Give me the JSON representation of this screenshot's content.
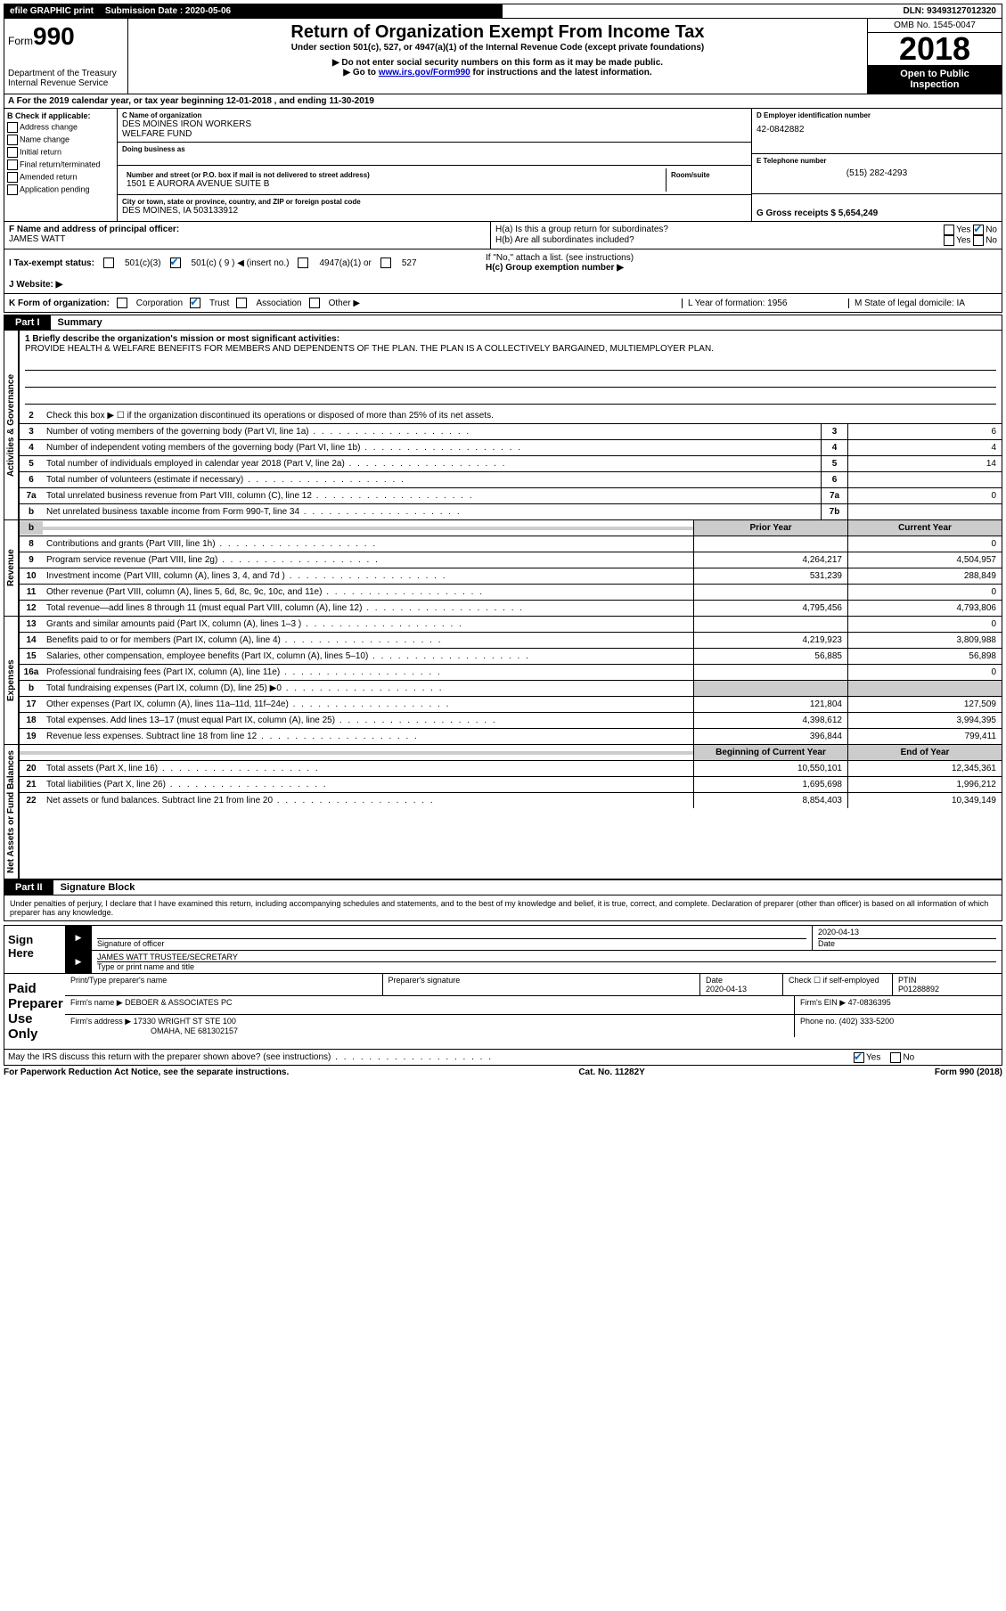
{
  "topbar": {
    "efile": "efile GRAPHIC print",
    "submission_label": "Submission Date : 2020-05-06",
    "dln": "DLN: 93493127012320"
  },
  "header": {
    "form_prefix": "Form",
    "form_number": "990",
    "dept": "Department of the Treasury",
    "irs": "Internal Revenue Service",
    "title": "Return of Organization Exempt From Income Tax",
    "sub1": "Under section 501(c), 527, or 4947(a)(1) of the Internal Revenue Code (except private foundations)",
    "sub2": "▶ Do not enter social security numbers on this form as it may be made public.",
    "sub3_pre": "▶ Go to ",
    "sub3_link": "www.irs.gov/Form990",
    "sub3_post": " for instructions and the latest information.",
    "omb": "OMB No. 1545-0047",
    "year": "2018",
    "open1": "Open to Public",
    "open2": "Inspection"
  },
  "rowA": "A For the 2019 calendar year, or tax year beginning 12-01-2018    , and ending 11-30-2019",
  "boxB": {
    "label": "B Check if applicable:",
    "items": [
      "Address change",
      "Name change",
      "Initial return",
      "Final return/terminated",
      "Amended return",
      "Application pending"
    ]
  },
  "boxC": {
    "name_label": "C Name of organization",
    "name1": "DES MOINES IRON WORKERS",
    "name2": "WELFARE FUND",
    "dba_label": "Doing business as",
    "addr_label": "Number and street (or P.O. box if mail is not delivered to street address)",
    "addr": "1501 E AURORA AVENUE SUITE B",
    "room_label": "Room/suite",
    "city_label": "City or town, state or province, country, and ZIP or foreign postal code",
    "city": "DES MOINES, IA  503133912"
  },
  "boxD": {
    "label": "D Employer identification number",
    "value": "42-0842882"
  },
  "boxE": {
    "label": "E Telephone number",
    "value": "(515) 282-4293"
  },
  "boxG": {
    "label": "G Gross receipts $ 5,654,249"
  },
  "boxF": {
    "label": "F Name and address of principal officer:",
    "value": "JAMES WATT"
  },
  "boxH": {
    "ha": "H(a)  Is this a group return for subordinates?",
    "hb": "H(b)  Are all subordinates included?",
    "hb_note": "If \"No,\" attach a list. (see instructions)",
    "hc": "H(c)  Group exemption number ▶",
    "yes": "Yes",
    "no": "No"
  },
  "rowI": {
    "label": "I   Tax-exempt status:",
    "opt1": "501(c)(3)",
    "opt2": "501(c) ( 9 ) ◀ (insert no.)",
    "opt3": "4947(a)(1) or",
    "opt4": "527"
  },
  "rowJ": {
    "label": "J   Website: ▶"
  },
  "rowK": {
    "label": "K Form of organization:",
    "opts": [
      "Corporation",
      "Trust",
      "Association",
      "Other ▶"
    ],
    "L": "L Year of formation: 1956",
    "M": "M State of legal domicile: IA"
  },
  "part1": {
    "tab": "Part I",
    "title": "Summary",
    "line1_label": "1  Briefly describe the organization's mission or most significant activities:",
    "line1_text": "PROVIDE HEALTH & WELFARE BENEFITS FOR MEMBERS AND DEPENDENTS OF THE PLAN. THE PLAN IS A COLLECTIVELY BARGAINED, MULTIEMPLOYER PLAN.",
    "line2": "Check this box ▶ ☐  if the organization discontinued its operations or disposed of more than 25% of its net assets.",
    "gov_label": "Activities & Governance",
    "rev_label": "Revenue",
    "exp_label": "Expenses",
    "net_label": "Net Assets or Fund Balances",
    "col_py": "Prior Year",
    "col_cy": "Current Year",
    "col_boy": "Beginning of Current Year",
    "col_eoy": "End of Year",
    "lines_gov": [
      {
        "n": "3",
        "d": "Number of voting members of the governing body (Part VI, line 1a)",
        "box": "3",
        "v": "6"
      },
      {
        "n": "4",
        "d": "Number of independent voting members of the governing body (Part VI, line 1b)",
        "box": "4",
        "v": "4"
      },
      {
        "n": "5",
        "d": "Total number of individuals employed in calendar year 2018 (Part V, line 2a)",
        "box": "5",
        "v": "14"
      },
      {
        "n": "6",
        "d": "Total number of volunteers (estimate if necessary)",
        "box": "6",
        "v": ""
      },
      {
        "n": "7a",
        "d": "Total unrelated business revenue from Part VIII, column (C), line 12",
        "box": "7a",
        "v": "0"
      },
      {
        "n": "b",
        "d": "Net unrelated business taxable income from Form 990-T, line 34",
        "box": "7b",
        "v": ""
      }
    ],
    "lines_rev": [
      {
        "n": "8",
        "d": "Contributions and grants (Part VIII, line 1h)",
        "py": "",
        "cy": "0"
      },
      {
        "n": "9",
        "d": "Program service revenue (Part VIII, line 2g)",
        "py": "4,264,217",
        "cy": "4,504,957"
      },
      {
        "n": "10",
        "d": "Investment income (Part VIII, column (A), lines 3, 4, and 7d )",
        "py": "531,239",
        "cy": "288,849"
      },
      {
        "n": "11",
        "d": "Other revenue (Part VIII, column (A), lines 5, 6d, 8c, 9c, 10c, and 11e)",
        "py": "",
        "cy": "0"
      },
      {
        "n": "12",
        "d": "Total revenue—add lines 8 through 11 (must equal Part VIII, column (A), line 12)",
        "py": "4,795,456",
        "cy": "4,793,806"
      }
    ],
    "lines_exp": [
      {
        "n": "13",
        "d": "Grants and similar amounts paid (Part IX, column (A), lines 1–3 )",
        "py": "",
        "cy": "0"
      },
      {
        "n": "14",
        "d": "Benefits paid to or for members (Part IX, column (A), line 4)",
        "py": "4,219,923",
        "cy": "3,809,988"
      },
      {
        "n": "15",
        "d": "Salaries, other compensation, employee benefits (Part IX, column (A), lines 5–10)",
        "py": "56,885",
        "cy": "56,898"
      },
      {
        "n": "16a",
        "d": "Professional fundraising fees (Part IX, column (A), line 11e)",
        "py": "",
        "cy": "0"
      },
      {
        "n": "b",
        "d": "Total fundraising expenses (Part IX, column (D), line 25) ▶0",
        "py": "shaded",
        "cy": "shaded"
      },
      {
        "n": "17",
        "d": "Other expenses (Part IX, column (A), lines 11a–11d, 11f–24e)",
        "py": "121,804",
        "cy": "127,509"
      },
      {
        "n": "18",
        "d": "Total expenses. Add lines 13–17 (must equal Part IX, column (A), line 25)",
        "py": "4,398,612",
        "cy": "3,994,395"
      },
      {
        "n": "19",
        "d": "Revenue less expenses. Subtract line 18 from line 12",
        "py": "396,844",
        "cy": "799,411"
      }
    ],
    "lines_net": [
      {
        "n": "20",
        "d": "Total assets (Part X, line 16)",
        "py": "10,550,101",
        "cy": "12,345,361"
      },
      {
        "n": "21",
        "d": "Total liabilities (Part X, line 26)",
        "py": "1,695,698",
        "cy": "1,996,212"
      },
      {
        "n": "22",
        "d": "Net assets or fund balances. Subtract line 21 from line 20",
        "py": "8,854,403",
        "cy": "10,349,149"
      }
    ]
  },
  "part2": {
    "tab": "Part II",
    "title": "Signature Block",
    "decl": "Under penalties of perjury, I declare that I have examined this return, including accompanying schedules and statements, and to the best of my knowledge and belief, it is true, correct, and complete. Declaration of preparer (other than officer) is based on all information of which preparer has any knowledge.",
    "sign_here": "Sign Here",
    "sig_officer": "Signature of officer",
    "sig_date_label": "Date",
    "sig_date": "2020-04-13",
    "sig_name": "JAMES WATT  TRUSTEE/SECRETARY",
    "sig_name_label": "Type or print name and title",
    "paid": "Paid Preparer Use Only",
    "prep_name_label": "Print/Type preparer's name",
    "prep_sig_label": "Preparer's signature",
    "prep_date_label": "Date",
    "prep_date": "2020-04-13",
    "prep_check": "Check ☐ if self-employed",
    "ptin_label": "PTIN",
    "ptin": "P01288892",
    "firm_name_label": "Firm's name    ▶",
    "firm_name": "DEBOER & ASSOCIATES PC",
    "firm_ein_label": "Firm's EIN ▶",
    "firm_ein": "47-0836395",
    "firm_addr_label": "Firm's address ▶",
    "firm_addr1": "17330 WRIGHT ST STE 100",
    "firm_addr2": "OMAHA, NE  681302157",
    "firm_phone_label": "Phone no.",
    "firm_phone": "(402) 333-5200",
    "discuss": "May the IRS discuss this return with the preparer shown above? (see instructions)"
  },
  "footer": {
    "left": "For Paperwork Reduction Act Notice, see the separate instructions.",
    "mid": "Cat. No. 11282Y",
    "right": "Form 990 (2018)"
  }
}
